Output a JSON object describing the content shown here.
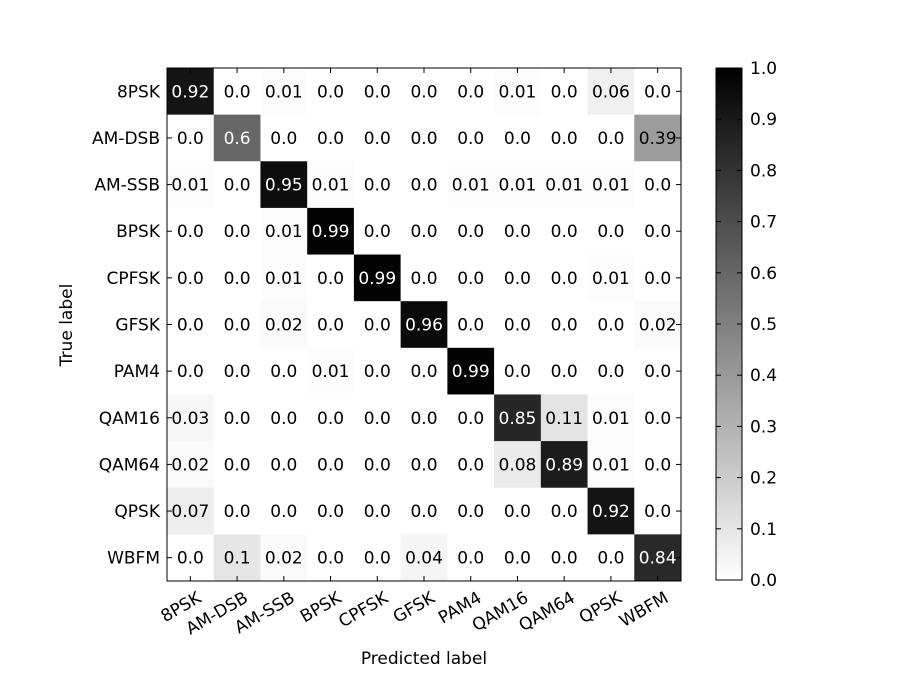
{
  "chart_data": {
    "type": "heatmap",
    "title": "",
    "xlabel": "Predicted label",
    "ylabel": "True label",
    "x_categories": [
      "8PSK",
      "AM-DSB",
      "AM-SSB",
      "BPSK",
      "CPFSK",
      "GFSK",
      "PAM4",
      "QAM16",
      "QAM64",
      "QPSK",
      "WBFM"
    ],
    "y_categories": [
      "8PSK",
      "AM-DSB",
      "AM-SSB",
      "BPSK",
      "CPFSK",
      "GFSK",
      "PAM4",
      "QAM16",
      "QAM64",
      "QPSK",
      "WBFM"
    ],
    "values": [
      [
        0.92,
        0.0,
        0.01,
        0.0,
        0.0,
        0.0,
        0.0,
        0.01,
        0.0,
        0.06,
        0.0
      ],
      [
        0.0,
        0.6,
        0.0,
        0.0,
        0.0,
        0.0,
        0.0,
        0.0,
        0.0,
        0.0,
        0.39
      ],
      [
        0.01,
        0.0,
        0.95,
        0.01,
        0.0,
        0.0,
        0.01,
        0.01,
        0.01,
        0.01,
        0.0
      ],
      [
        0.0,
        0.0,
        0.01,
        0.99,
        0.0,
        0.0,
        0.0,
        0.0,
        0.0,
        0.0,
        0.0
      ],
      [
        0.0,
        0.0,
        0.01,
        0.0,
        0.99,
        0.0,
        0.0,
        0.0,
        0.0,
        0.01,
        0.0
      ],
      [
        0.0,
        0.0,
        0.02,
        0.0,
        0.0,
        0.96,
        0.0,
        0.0,
        0.0,
        0.0,
        0.02
      ],
      [
        0.0,
        0.0,
        0.0,
        0.01,
        0.0,
        0.0,
        0.99,
        0.0,
        0.0,
        0.0,
        0.0
      ],
      [
        0.03,
        0.0,
        0.0,
        0.0,
        0.0,
        0.0,
        0.0,
        0.85,
        0.11,
        0.01,
        0.0
      ],
      [
        0.02,
        0.0,
        0.0,
        0.0,
        0.0,
        0.0,
        0.0,
        0.08,
        0.89,
        0.01,
        0.0
      ],
      [
        0.07,
        0.0,
        0.0,
        0.0,
        0.0,
        0.0,
        0.0,
        0.0,
        0.0,
        0.92,
        0.0
      ],
      [
        0.0,
        0.1,
        0.02,
        0.0,
        0.0,
        0.04,
        0.0,
        0.0,
        0.0,
        0.0,
        0.84
      ]
    ],
    "value_labels": [
      [
        "0.92",
        "0.0",
        "0.01",
        "0.0",
        "0.0",
        "0.0",
        "0.0",
        "0.01",
        "0.0",
        "0.06",
        "0.0"
      ],
      [
        "0.0",
        "0.6",
        "0.0",
        "0.0",
        "0.0",
        "0.0",
        "0.0",
        "0.0",
        "0.0",
        "0.0",
        "0.39"
      ],
      [
        "0.01",
        "0.0",
        "0.95",
        "0.01",
        "0.0",
        "0.0",
        "0.01",
        "0.01",
        "0.01",
        "0.01",
        "0.0"
      ],
      [
        "0.0",
        "0.0",
        "0.01",
        "0.99",
        "0.0",
        "0.0",
        "0.0",
        "0.0",
        "0.0",
        "0.0",
        "0.0"
      ],
      [
        "0.0",
        "0.0",
        "0.01",
        "0.0",
        "0.99",
        "0.0",
        "0.0",
        "0.0",
        "0.0",
        "0.01",
        "0.0"
      ],
      [
        "0.0",
        "0.0",
        "0.02",
        "0.0",
        "0.0",
        "0.96",
        "0.0",
        "0.0",
        "0.0",
        "0.0",
        "0.02"
      ],
      [
        "0.0",
        "0.0",
        "0.0",
        "0.01",
        "0.0",
        "0.0",
        "0.99",
        "0.0",
        "0.0",
        "0.0",
        "0.0"
      ],
      [
        "0.03",
        "0.0",
        "0.0",
        "0.0",
        "0.0",
        "0.0",
        "0.0",
        "0.85",
        "0.11",
        "0.01",
        "0.0"
      ],
      [
        "0.02",
        "0.0",
        "0.0",
        "0.0",
        "0.0",
        "0.0",
        "0.0",
        "0.08",
        "0.89",
        "0.01",
        "0.0"
      ],
      [
        "0.07",
        "0.0",
        "0.0",
        "0.0",
        "0.0",
        "0.0",
        "0.0",
        "0.0",
        "0.0",
        "0.92",
        "0.0"
      ],
      [
        "0.0",
        "0.1",
        "0.02",
        "0.0",
        "0.0",
        "0.04",
        "0.0",
        "0.0",
        "0.0",
        "0.0",
        "0.84"
      ]
    ],
    "colormap": "greys",
    "low_color": "#ffffff",
    "high_color": "#000000",
    "vmin": 0.0,
    "vmax": 1.0,
    "colorbar_ticks": [
      "0.0",
      "0.1",
      "0.2",
      "0.3",
      "0.4",
      "0.5",
      "0.6",
      "0.7",
      "0.8",
      "0.9",
      "1.0"
    ],
    "colorbar_position": "right",
    "grid": false
  }
}
